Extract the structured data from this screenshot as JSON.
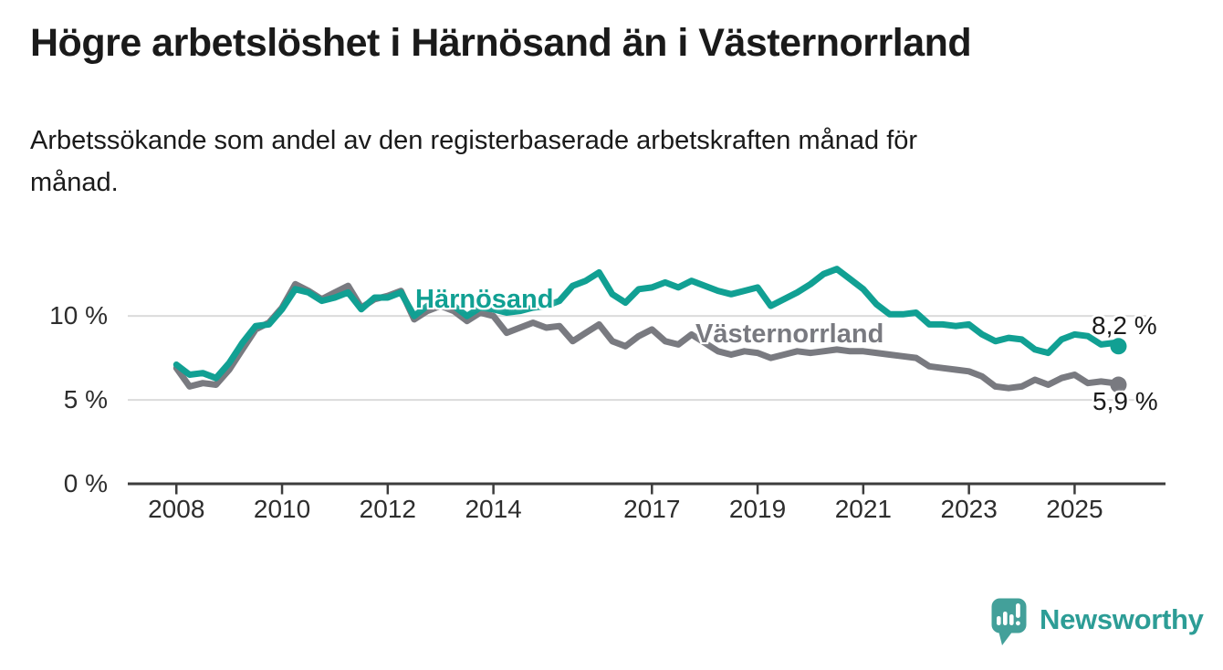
{
  "header": {
    "title": "Högre arbetslöshet i Härnösand än i Västernorrland",
    "subtitle": "Arbetssökande som andel av den registerbaserade arbetskraften månad för månad."
  },
  "chart_data": {
    "type": "line",
    "title": "Högre arbetslöshet i Härnösand än i Västernorrland",
    "subtitle": "Arbetssökande som andel av den registerbaserade arbetskraften månad för månad.",
    "unit": "%",
    "grid": "horizontal",
    "legend_position": "inline-labels",
    "xlim": [
      2007.08,
      2026.72
    ],
    "ylim": [
      0,
      13.6
    ],
    "xticks": [
      {
        "value": 2008,
        "label": "2008"
      },
      {
        "value": 2010,
        "label": "2010"
      },
      {
        "value": 2012,
        "label": "2012"
      },
      {
        "value": 2014,
        "label": "2014"
      },
      {
        "value": 2017,
        "label": "2017"
      },
      {
        "value": 2019,
        "label": "2019"
      },
      {
        "value": 2021,
        "label": "2021"
      },
      {
        "value": 2023,
        "label": "2023"
      },
      {
        "value": 2025,
        "label": "2025"
      }
    ],
    "yticks": [
      {
        "value": 0,
        "label": "0 %"
      },
      {
        "value": 5,
        "label": "5 %"
      },
      {
        "value": 10,
        "label": "10 %"
      }
    ],
    "x": [
      2008.0,
      2008.25,
      2008.5,
      2008.75,
      2009.0,
      2009.25,
      2009.5,
      2009.75,
      2010.0,
      2010.25,
      2010.5,
      2010.75,
      2011.0,
      2011.25,
      2011.5,
      2011.75,
      2012.0,
      2012.25,
      2012.5,
      2012.75,
      2013.0,
      2013.25,
      2013.5,
      2013.75,
      2014.0,
      2014.25,
      2014.5,
      2014.75,
      2015.0,
      2015.25,
      2015.5,
      2015.75,
      2016.0,
      2016.25,
      2016.5,
      2016.75,
      2017.0,
      2017.25,
      2017.5,
      2017.75,
      2018.0,
      2018.25,
      2018.5,
      2018.75,
      2019.0,
      2019.25,
      2019.5,
      2019.75,
      2020.0,
      2020.25,
      2020.5,
      2020.75,
      2021.0,
      2021.25,
      2021.5,
      2021.75,
      2022.0,
      2022.25,
      2022.5,
      2022.75,
      2023.0,
      2023.25,
      2023.5,
      2023.75,
      2024.0,
      2024.25,
      2024.5,
      2024.75,
      2025.0,
      2025.25,
      2025.5,
      2025.75,
      2025.83
    ],
    "series": [
      {
        "name": "Härnösand",
        "color": "#11A093",
        "end_label": "8,2 %",
        "end_value": 8.2,
        "values": [
          7.1,
          6.5,
          6.6,
          6.3,
          7.2,
          8.4,
          9.4,
          9.5,
          10.4,
          11.6,
          11.4,
          10.9,
          11.1,
          11.4,
          10.4,
          11.1,
          11.1,
          11.4,
          10.0,
          10.6,
          10.9,
          10.6,
          10.0,
          10.5,
          10.4,
          10.2,
          10.3,
          10.5,
          10.6,
          10.9,
          11.8,
          12.1,
          12.6,
          11.3,
          10.8,
          11.6,
          11.7,
          12.0,
          11.7,
          12.1,
          11.8,
          11.5,
          11.3,
          11.5,
          11.7,
          10.6,
          11.0,
          11.4,
          11.9,
          12.5,
          12.8,
          12.2,
          11.6,
          10.7,
          10.1,
          10.1,
          10.2,
          9.5,
          9.5,
          9.4,
          9.5,
          8.9,
          8.5,
          8.7,
          8.6,
          8.0,
          7.8,
          8.6,
          8.9,
          8.8,
          8.3,
          8.4,
          8.2
        ]
      },
      {
        "name": "Västernorrland",
        "color": "#797A80",
        "end_label": "5,9 %",
        "end_value": 5.9,
        "values": [
          6.9,
          5.8,
          6.0,
          5.9,
          6.8,
          8.0,
          9.2,
          9.6,
          10.5,
          11.9,
          11.5,
          11.0,
          11.4,
          11.8,
          10.5,
          11.0,
          11.2,
          11.5,
          9.8,
          10.3,
          10.6,
          10.3,
          9.7,
          10.2,
          10.0,
          9.0,
          9.3,
          9.6,
          9.3,
          9.4,
          8.5,
          9.0,
          9.5,
          8.5,
          8.2,
          8.8,
          9.2,
          8.5,
          8.3,
          8.9,
          8.4,
          7.9,
          7.7,
          7.9,
          7.8,
          7.5,
          7.7,
          7.9,
          7.8,
          7.9,
          8.0,
          7.9,
          7.9,
          7.8,
          7.7,
          7.6,
          7.5,
          7.0,
          6.9,
          6.8,
          6.7,
          6.4,
          5.8,
          5.7,
          5.8,
          6.2,
          5.9,
          6.3,
          6.5,
          6.0,
          6.1,
          6.0,
          5.9
        ]
      }
    ]
  },
  "branding": {
    "logo_text": "Newsworthy",
    "logo_icon": "bar-chart-speech-bubble-icon",
    "icon_color": "#43A09A",
    "text_color": "#2D9D96"
  },
  "colors": {
    "background": "#FFFFFF",
    "title": "#1A1A1A",
    "axis_line": "#3C3C3C",
    "gridline": "#DBDBDB",
    "tick_label": "#2D2D2D"
  }
}
